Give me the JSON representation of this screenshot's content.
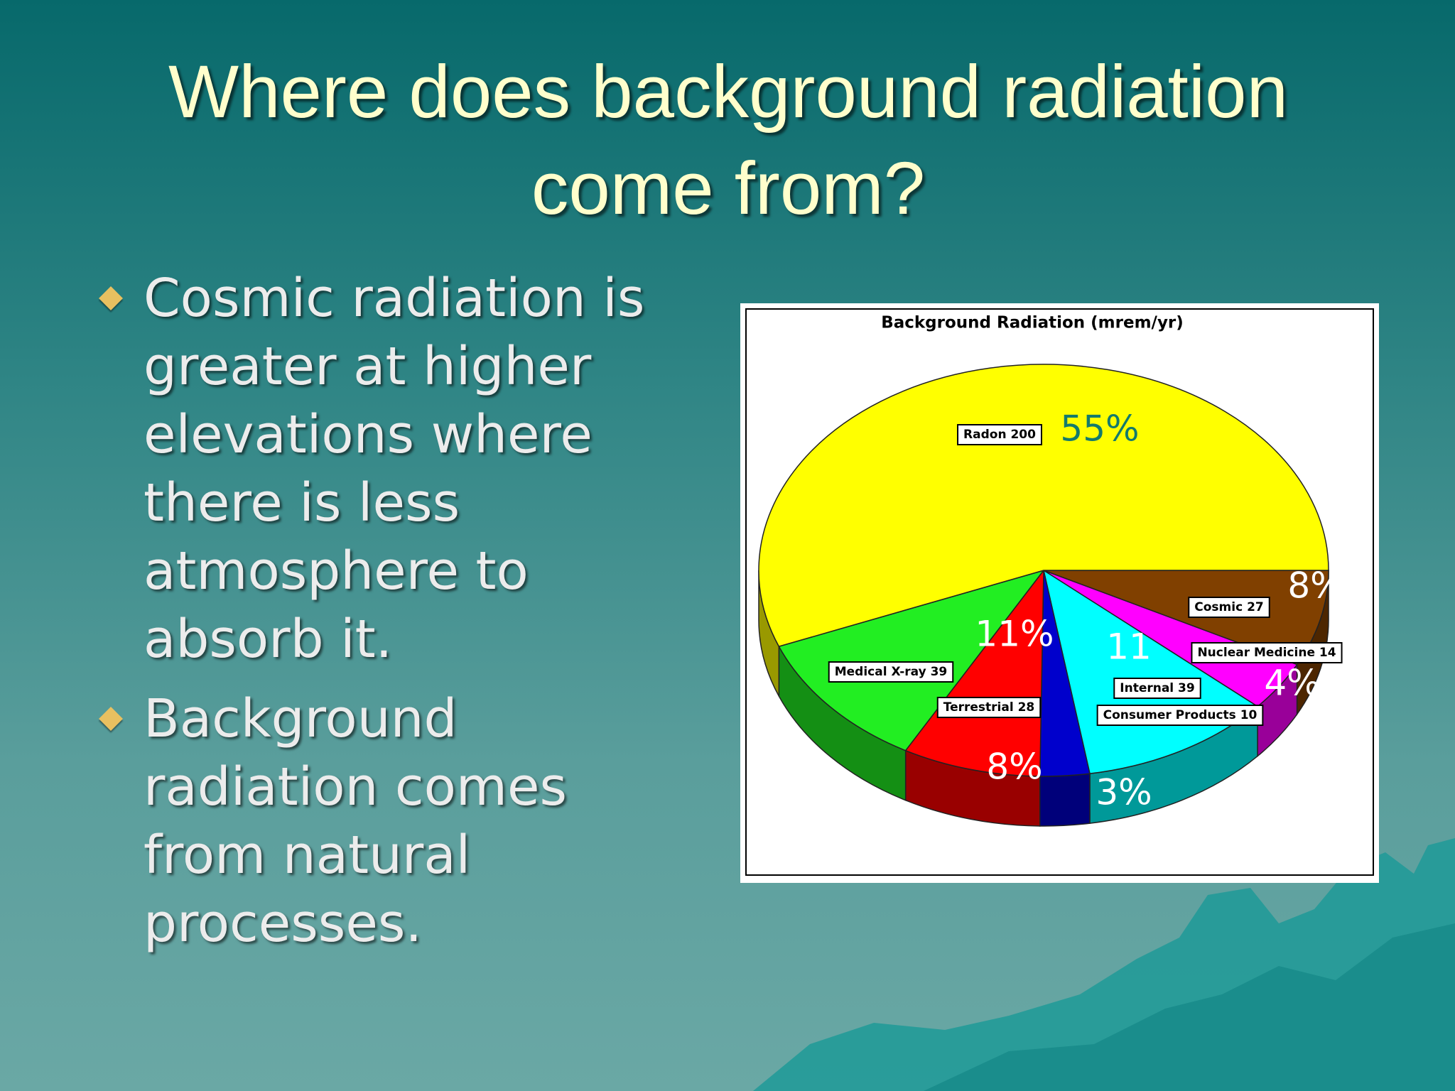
{
  "title": "Where does background radiation come from?",
  "bullets": [
    "Cosmic radiation is greater at higher elevations where there is less atmosphere to absorb it.",
    "Background radiation comes from natural processes."
  ],
  "chart_data": {
    "type": "pie",
    "title": "Background Radiation (mrem/yr)",
    "categories": [
      "Cosmic 27",
      "Nuclear Medicine 14",
      "Internal 39",
      "Consumer Products 10",
      "Terrestrial 28",
      "Medical X-ray 39",
      "Radon 200"
    ],
    "values": [
      27,
      14,
      39,
      10,
      28,
      39,
      200
    ],
    "colors": [
      "#804000",
      "#ff00ff",
      "#00ffff",
      "#0000cc",
      "#ff0000",
      "#22ee22",
      "#ffff00"
    ],
    "annotations": [
      "8%",
      "4%",
      "11",
      "3%",
      "8%",
      "11%",
      "55%"
    ]
  }
}
